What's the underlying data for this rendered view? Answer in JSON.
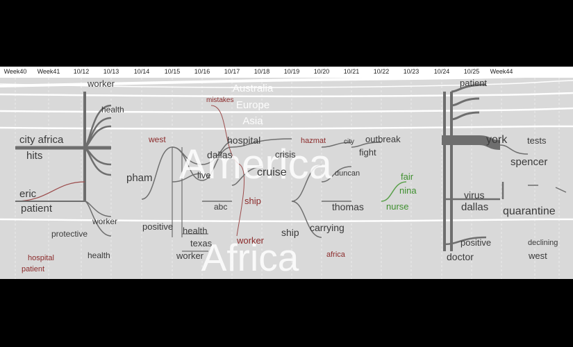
{
  "timeline": {
    "ticks": [
      "Week40",
      "Week41",
      "10/12",
      "10/13",
      "10/14",
      "10/15",
      "10/16",
      "10/17",
      "10/18",
      "10/19",
      "10/20",
      "10/21",
      "10/22",
      "10/23",
      "10/24",
      "10/25",
      "Week44"
    ]
  },
  "regions": [
    {
      "name": "Australia",
      "size": "small"
    },
    {
      "name": "Europe",
      "size": "small"
    },
    {
      "name": "Asia",
      "size": "small"
    },
    {
      "name": "America",
      "size": "large"
    },
    {
      "name": "Africa",
      "size": "large"
    }
  ],
  "colors": {
    "background": "#d9d9d9",
    "stream_line": "#ffffff",
    "flow": "#6e6e6e",
    "term_default": "#3a3a3a",
    "term_red": "#8b2a2a",
    "term_green": "#3f8f2f"
  },
  "terms": [
    {
      "text": "worker",
      "color": "default"
    },
    {
      "text": "health",
      "color": "default"
    },
    {
      "text": "city africa",
      "color": "default"
    },
    {
      "text": "hits",
      "color": "default"
    },
    {
      "text": "eric",
      "color": "default"
    },
    {
      "text": "patient",
      "color": "default"
    },
    {
      "text": "worker",
      "color": "default"
    },
    {
      "text": "protective",
      "color": "default"
    },
    {
      "text": "health",
      "color": "default"
    },
    {
      "text": "hospital",
      "color": "red"
    },
    {
      "text": "patient",
      "color": "red"
    },
    {
      "text": "mistakes",
      "color": "red"
    },
    {
      "text": "west",
      "color": "red"
    },
    {
      "text": "hospital",
      "color": "default"
    },
    {
      "text": "dallas",
      "color": "default"
    },
    {
      "text": "pham",
      "color": "default"
    },
    {
      "text": "live",
      "color": "default"
    },
    {
      "text": "abc",
      "color": "default"
    },
    {
      "text": "cruise",
      "color": "default"
    },
    {
      "text": "ship",
      "color": "red"
    },
    {
      "text": "positive",
      "color": "default"
    },
    {
      "text": "health",
      "color": "default"
    },
    {
      "text": "texas",
      "color": "default"
    },
    {
      "text": "worker",
      "color": "default"
    },
    {
      "text": "worker",
      "color": "red"
    },
    {
      "text": "crisis",
      "color": "default"
    },
    {
      "text": "hazmat",
      "color": "red"
    },
    {
      "text": "city",
      "color": "default"
    },
    {
      "text": "outbreak",
      "color": "default"
    },
    {
      "text": "fight",
      "color": "default"
    },
    {
      "text": "duncan",
      "color": "default"
    },
    {
      "text": "thomas",
      "color": "default"
    },
    {
      "text": "carrying",
      "color": "default"
    },
    {
      "text": "ship",
      "color": "default"
    },
    {
      "text": "africa",
      "color": "red"
    },
    {
      "text": "fair",
      "color": "green"
    },
    {
      "text": "nina",
      "color": "green"
    },
    {
      "text": "nurse",
      "color": "green"
    },
    {
      "text": "patient",
      "color": "default"
    },
    {
      "text": "york",
      "color": "default"
    },
    {
      "text": "tests",
      "color": "default"
    },
    {
      "text": "spencer",
      "color": "default"
    },
    {
      "text": "virus",
      "color": "default"
    },
    {
      "text": "dallas",
      "color": "default"
    },
    {
      "text": "quarantine",
      "color": "default"
    },
    {
      "text": "positive",
      "color": "default"
    },
    {
      "text": "doctor",
      "color": "default"
    },
    {
      "text": "declining",
      "color": "default"
    },
    {
      "text": "west",
      "color": "default"
    }
  ]
}
